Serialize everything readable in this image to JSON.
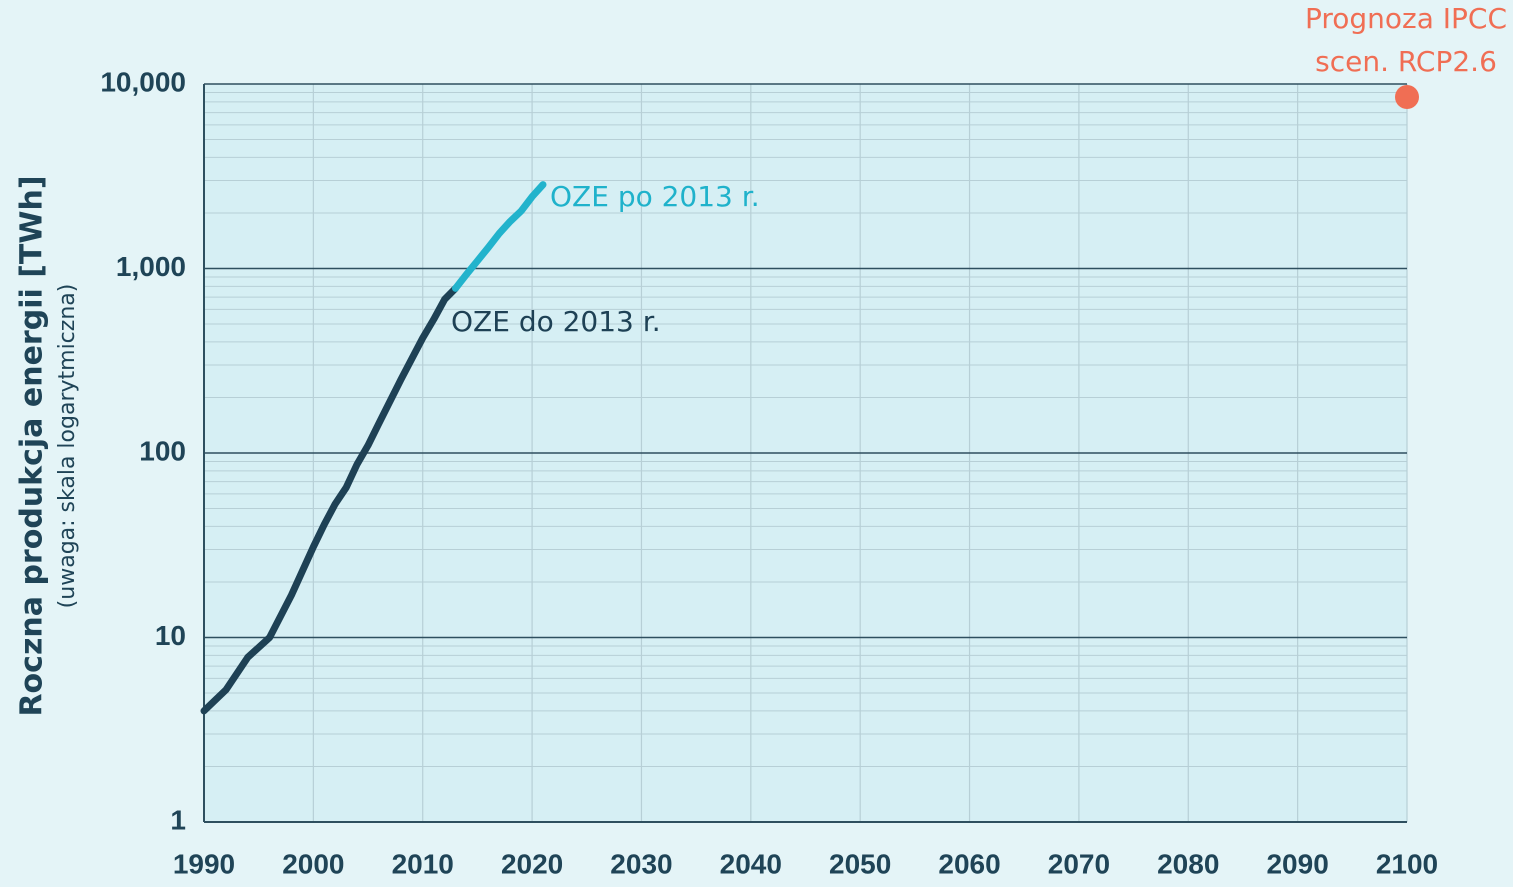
{
  "chart_data": {
    "type": "line",
    "ylabel": "Roczna produkcja energii [TWh]",
    "ylabel_note": "(uwaga: skala logarytmiczna)",
    "xlim": [
      1990,
      2100
    ],
    "ylim": [
      1,
      10000
    ],
    "yscale": "log",
    "grid": true,
    "x_ticks": [
      "1990",
      "2000",
      "2010",
      "2020",
      "2030",
      "2040",
      "2050",
      "2060",
      "2070",
      "2080",
      "2090",
      "2100"
    ],
    "y_ticks": [
      {
        "value": 1,
        "label": "1"
      },
      {
        "value": 10,
        "label": "10"
      },
      {
        "value": 100,
        "label": "100"
      },
      {
        "value": 1000,
        "label": "1,000"
      },
      {
        "value": 10000,
        "label": "10,000"
      }
    ],
    "series": [
      {
        "name": "OZE do 2013 r.",
        "color": "#1e4155",
        "x": [
          1990,
          1992,
          1994,
          1996,
          1998,
          2000,
          2001,
          2002,
          2003,
          2004,
          2005,
          2006,
          2008,
          2010,
          2011,
          2012,
          2013
        ],
        "y": [
          4.0,
          5.2,
          7.8,
          10,
          17,
          31,
          41,
          53,
          65,
          87,
          110,
          145,
          250,
          420,
          530,
          680,
          780
        ]
      },
      {
        "name": "OZE po 2013 r.",
        "color": "#22b3cc",
        "x": [
          2013,
          2014,
          2015,
          2016,
          2017,
          2018,
          2019,
          2020,
          2021
        ],
        "y": [
          780,
          930,
          1100,
          1300,
          1550,
          1800,
          2050,
          2450,
          2850
        ]
      },
      {
        "name": "Prognoza IPCC scen. RCP2.6",
        "type": "scatter",
        "color": "#f06e54",
        "x": [
          2100
        ],
        "y": [
          8500
        ]
      }
    ],
    "annotations": {
      "oze_before": "OZE do 2013 r.",
      "oze_after": "OZE po 2013 r.",
      "ipcc_line1": "Prognoza IPCC",
      "ipcc_line2": "scen. RCP2.6"
    }
  }
}
